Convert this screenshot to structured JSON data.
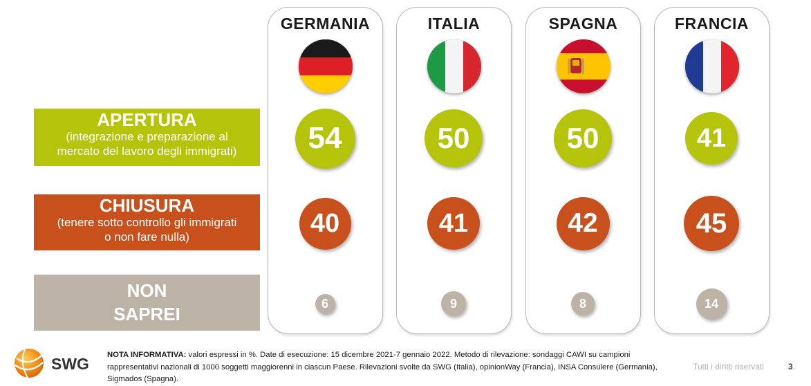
{
  "chart_data": {
    "type": "table",
    "countries": [
      "GERMANIA",
      "ITALIA",
      "SPAGNA",
      "FRANCIA"
    ],
    "rows": [
      {
        "title": "APERTURA",
        "subtitle": "(integrazione e preparazione al mercato del lavoro degli immigrati)",
        "subtitle_lines": [
          "(integrazione e preparazione al",
          "mercato del lavoro degli immigrati)"
        ],
        "values": [
          54,
          50,
          50,
          41
        ]
      },
      {
        "title": "CHIUSURA",
        "subtitle": "(tenere sotto controllo gli immigrati o non fare nulla)",
        "subtitle_lines": [
          "(tenere sotto controllo gli immigrati",
          "o non fare nulla)"
        ],
        "values": [
          40,
          41,
          42,
          45
        ]
      },
      {
        "title": "NON SAPREI",
        "title_lines": [
          "NON",
          "SAPREI"
        ],
        "subtitle": "",
        "values": [
          6,
          9,
          8,
          14
        ]
      }
    ],
    "unit": "%"
  },
  "colors": {
    "apertura": "#b5c40a",
    "chiusura": "#c8501c",
    "non_saprei": "#bdb2a6"
  },
  "footer": {
    "note_bold": "NOTA INFORMATIVA:",
    "note_text": " valori espressi in %. Date di esecuzione: 15 dicembre 2021-7 gennaio 2022. Metodo di rilevazione: sondaggi CAWI su campioni rappresentativi nazionali di 1000 soggetti maggiorenni in ciascun Paese. Rilevazioni svolte da SWG (Italia), opinionWay (Francia), INSA Consulere (Germania), Sigmados (Spagna).",
    "rights": "Tutti i diritti riservati",
    "page": "3",
    "logo_text": "SWG"
  }
}
